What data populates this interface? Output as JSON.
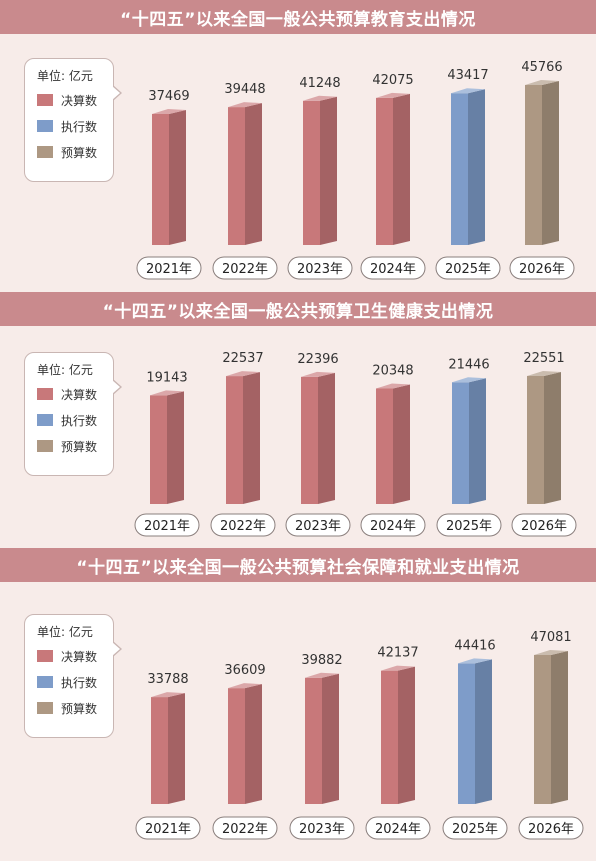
{
  "colors": {
    "page_bg": "#f7ece9",
    "banner_bg": "#c98a8d",
    "final_accounts": "#c8787a",
    "execution": "#7e9cc9",
    "budget": "#ad9883"
  },
  "legend": {
    "unit": "单位: 亿元",
    "final_accounts": "决算数",
    "execution": "执行数",
    "budget": "预算数"
  },
  "chart_data": [
    {
      "type": "bar",
      "title": "“十四五”以来全国一般公共预算教育支出情况",
      "unit": "亿元",
      "categories": [
        "2021年",
        "2022年",
        "2023年",
        "2024年",
        "2025年",
        "2026年"
      ],
      "values": [
        37469,
        39448,
        41248,
        42075,
        43417,
        45766
      ],
      "value_labels": [
        "37469",
        "39448",
        "41248",
        "42075",
        "43417",
        "45766"
      ],
      "kinds": [
        "final",
        "final",
        "final",
        "final",
        "execution",
        "budget"
      ]
    },
    {
      "type": "bar",
      "title": "“十四五”以来全国一般公共预算卫生健康支出情况",
      "unit": "亿元",
      "categories": [
        "2021年",
        "2022年",
        "2023年",
        "2024年",
        "2025年",
        "2026年"
      ],
      "values": [
        19143,
        22537,
        22396,
        20348,
        21446,
        22551
      ],
      "value_labels": [
        "19143",
        "22537",
        "22396",
        "20348",
        "21446",
        "22551"
      ],
      "kinds": [
        "final",
        "final",
        "final",
        "final",
        "execution",
        "budget"
      ]
    },
    {
      "type": "bar",
      "title": "“十四五”以来全国一般公共预算社会保障和就业支出情况",
      "unit": "亿元",
      "categories": [
        "2021年",
        "2022年",
        "2023年",
        "2024年",
        "2025年",
        "2026年"
      ],
      "values": [
        33788,
        36609,
        39882,
        42137,
        44416,
        47081
      ],
      "value_labels": [
        "33788",
        "36609",
        "39882",
        "42137",
        "44416",
        "47081"
      ],
      "kinds": [
        "final",
        "final",
        "final",
        "final",
        "execution",
        "budget"
      ]
    }
  ]
}
